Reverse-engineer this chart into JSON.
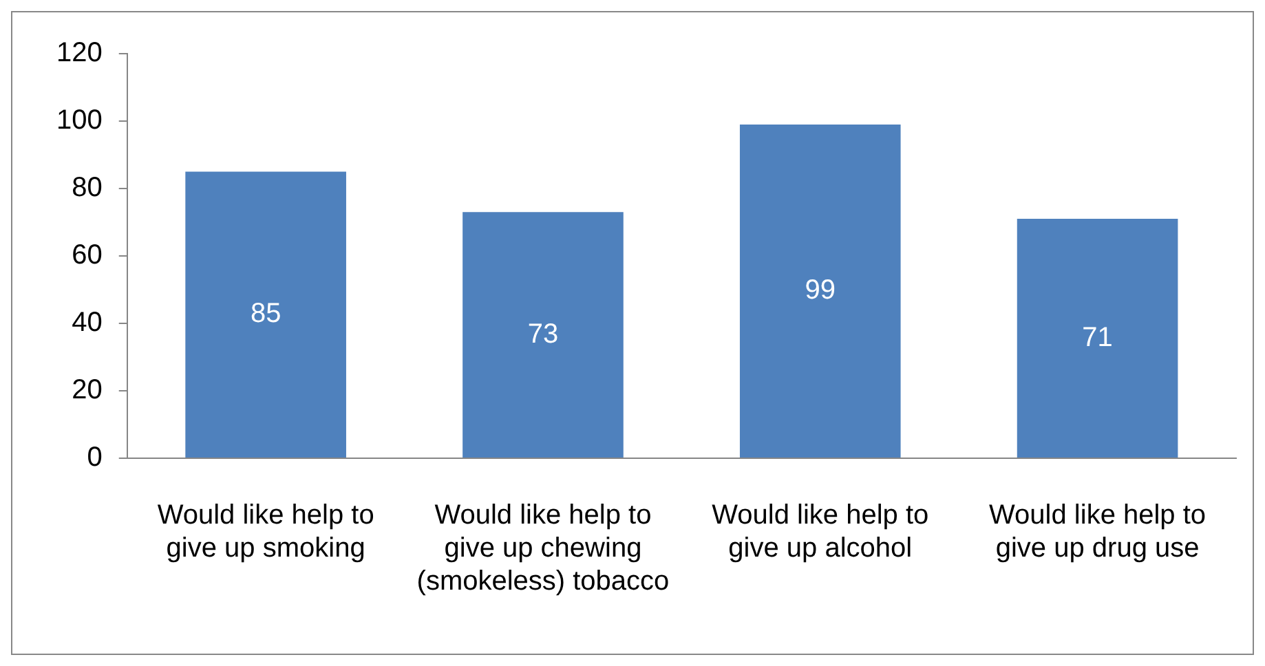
{
  "chart_data": {
    "type": "bar",
    "categories": [
      "Would like help to give up smoking",
      "Would like help to give up chewing (smokeless) tobacco",
      "Would like help to give up alcohol",
      "Would like help to give up drug use"
    ],
    "values": [
      85,
      73,
      99,
      71
    ],
    "color": "#4f81bd",
    "ylim": [
      0,
      120
    ],
    "yticks": [
      0,
      20,
      40,
      60,
      80,
      100,
      120
    ],
    "grid": false,
    "legend": false,
    "data_labels": true
  }
}
